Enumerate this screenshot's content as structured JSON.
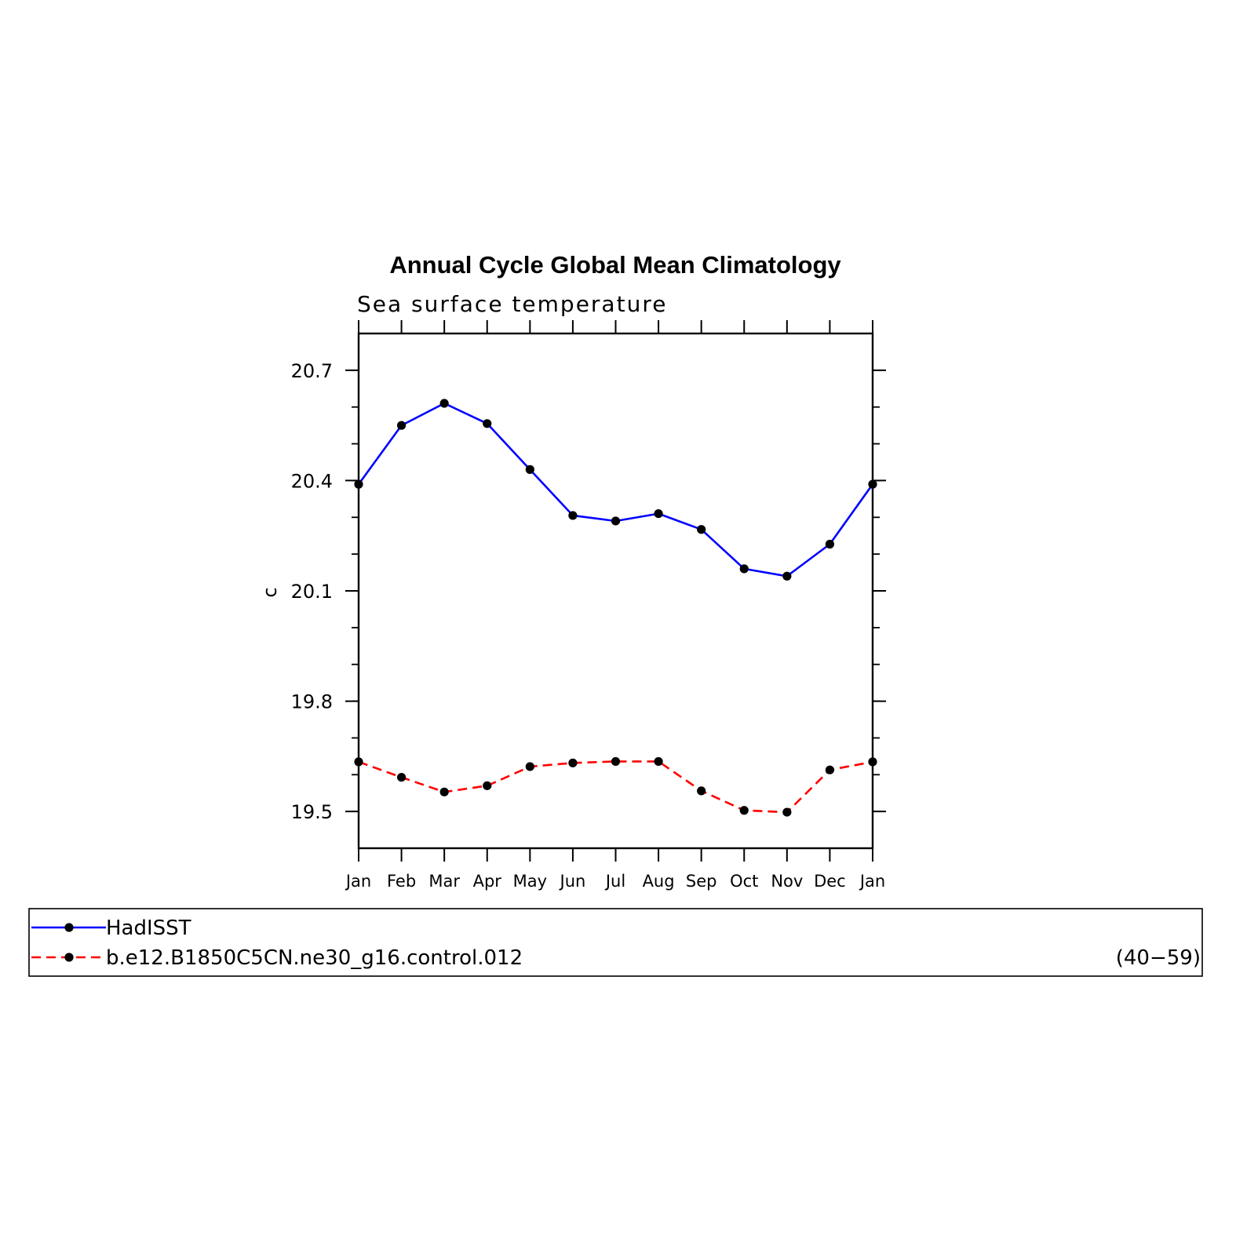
{
  "chart_data": {
    "type": "line",
    "title": "Annual Cycle Global Mean Climatology",
    "subtitle": "Sea surface temperature",
    "xlabel": "",
    "ylabel": "c",
    "categories": [
      "Jan",
      "Feb",
      "Mar",
      "Apr",
      "May",
      "Jun",
      "Jul",
      "Aug",
      "Sep",
      "Oct",
      "Nov",
      "Dec",
      "Jan"
    ],
    "ylim": [
      19.4,
      20.8
    ],
    "yticks": [
      "20.7",
      "20.4",
      "20.1",
      "19.8",
      "19.5"
    ],
    "grid": false,
    "legend_position": "bottom",
    "series": [
      {
        "name": "HadISST",
        "color": "#0000ff",
        "line_style": "solid",
        "marker": "filled-circle",
        "values": [
          20.39,
          20.55,
          20.61,
          20.555,
          20.43,
          20.305,
          20.29,
          20.31,
          20.267,
          20.16,
          20.14,
          20.227,
          20.39
        ]
      },
      {
        "name": "b.e12.B1850C5CN.ne30_g16.control.012",
        "color": "#ff0000",
        "line_style": "dashed",
        "marker": "filled-circle",
        "values": [
          19.635,
          19.593,
          19.553,
          19.57,
          19.622,
          19.632,
          19.636,
          19.636,
          19.556,
          19.503,
          19.498,
          19.613,
          19.635
        ]
      }
    ],
    "legend_annotation": "(40−59)"
  }
}
